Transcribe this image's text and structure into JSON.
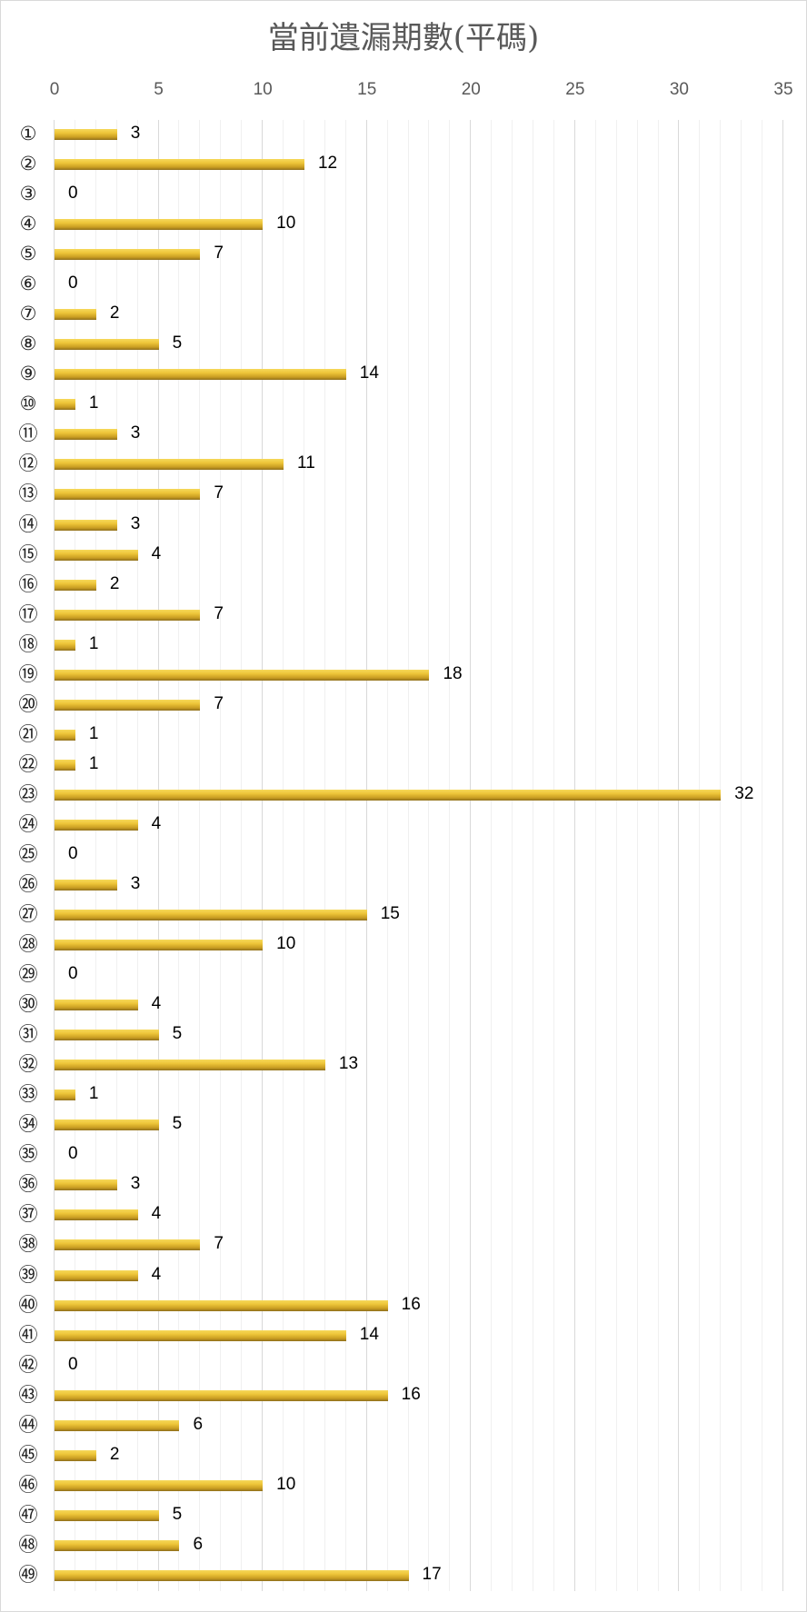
{
  "chart_data": {
    "type": "bar",
    "orientation": "horizontal",
    "title": "當前遺漏期數(平碼)",
    "xlabel": "",
    "ylabel": "",
    "xlim": [
      0,
      35
    ],
    "x_ticks": [
      0,
      5,
      10,
      15,
      20,
      25,
      30,
      35
    ],
    "grid": true,
    "minor_grid_step": 1,
    "legend": null,
    "data_labels": true,
    "bar_color": "#e8c032",
    "categories": [
      "①",
      "②",
      "③",
      "④",
      "⑤",
      "⑥",
      "⑦",
      "⑧",
      "⑨",
      "⑩",
      "⑪",
      "⑫",
      "⑬",
      "⑭",
      "⑮",
      "⑯",
      "⑰",
      "⑱",
      "⑲",
      "⑳",
      "㉑",
      "㉒",
      "㉓",
      "㉔",
      "㉕",
      "㉖",
      "㉗",
      "㉘",
      "㉙",
      "㉚",
      "㉛",
      "㉜",
      "㉝",
      "㉞",
      "㉟",
      "㊱",
      "㊲",
      "㊳",
      "㊴",
      "㊵",
      "㊶",
      "㊷",
      "㊸",
      "㊹",
      "㊺",
      "㊻",
      "㊼",
      "㊽",
      "㊾"
    ],
    "values": [
      3,
      12,
      0,
      10,
      7,
      0,
      2,
      5,
      14,
      1,
      3,
      11,
      7,
      3,
      4,
      2,
      7,
      1,
      18,
      7,
      1,
      1,
      32,
      4,
      0,
      3,
      15,
      10,
      0,
      4,
      5,
      13,
      1,
      5,
      0,
      3,
      4,
      7,
      4,
      16,
      14,
      0,
      16,
      6,
      2,
      10,
      5,
      6,
      17
    ]
  }
}
